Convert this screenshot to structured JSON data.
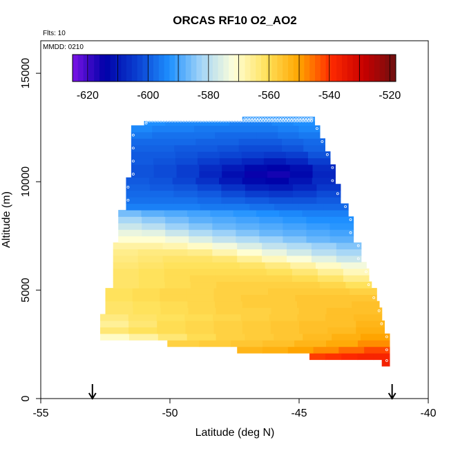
{
  "chart_data": {
    "type": "heatmap",
    "title": "ORCAS RF10 O2_AO2",
    "annotations": {
      "flights": "Flts: 10",
      "date": "MMDD: 0210"
    },
    "xlabel": "Latitude (deg N)",
    "ylabel": "Altitude (m)",
    "xlim": [
      -55,
      -40
    ],
    "ylim": [
      0,
      16500
    ],
    "xticks": [
      -55,
      -50,
      -45,
      -40
    ],
    "xtick_labels": [
      "-55",
      "-50",
      "-45",
      "-40"
    ],
    "yticks": [
      0,
      5000,
      10000,
      15000
    ],
    "ytick_labels": [
      "0",
      "5000",
      "10000",
      "15000"
    ],
    "colorbar": {
      "range": [
        -625,
        -518
      ],
      "ticks": [
        -620,
        -600,
        -580,
        -560,
        -540,
        -520
      ],
      "tick_labels": [
        "-620",
        "-600",
        "-580",
        "-560",
        "-540",
        "-520"
      ],
      "colors": [
        "#7b14e6",
        "#0000a8",
        "#0a3fd0",
        "#1e90ff",
        "#a6d6f7",
        "#ffffd8",
        "#ffe15a",
        "#ffa500",
        "#ff2a00",
        "#c80000",
        "#6e1010"
      ]
    },
    "arrows_at_latitude": [
      -53,
      -41.4
    ],
    "altitude_rows": [
      {
        "y0": 1500,
        "y1": 2000,
        "x0": -41.8,
        "x1": -41.5,
        "values": [
          -537,
          -537
        ]
      },
      {
        "y0": 1800,
        "y1": 2100,
        "x0": -44.6,
        "x1": -41.5,
        "values": [
          -541,
          -540,
          -539,
          -538,
          -538
        ]
      },
      {
        "y0": 2100,
        "y1": 2400,
        "x0": -47.4,
        "x1": -41.5,
        "values": [
          -553,
          -552,
          -550,
          -548,
          -545,
          -542
        ]
      },
      {
        "y0": 2400,
        "y1": 2700,
        "x0": -50.1,
        "x1": -41.5,
        "values": [
          -558,
          -557,
          -556,
          -555,
          -553,
          -551,
          -548
        ]
      },
      {
        "y0": 2700,
        "y1": 3000,
        "x0": -52.7,
        "x1": -41.5,
        "values": [
          -570,
          -567,
          -563,
          -560,
          -558,
          -557,
          -556,
          -554,
          -552,
          -550
        ]
      },
      {
        "y0": 3000,
        "y1": 3300,
        "x0": -52.7,
        "x1": -41.7,
        "values": [
          -563,
          -561,
          -560,
          -559,
          -558,
          -557,
          -556,
          -555,
          -554,
          -552
        ]
      },
      {
        "y0": 3300,
        "y1": 3600,
        "x0": -52.7,
        "x1": -41.7,
        "values": [
          -566,
          -563,
          -560,
          -559,
          -558,
          -557,
          -556,
          -555,
          -555,
          -553
        ]
      },
      {
        "y0": 3600,
        "y1": 3900,
        "x0": -52.7,
        "x1": -41.8,
        "values": [
          -564,
          -562,
          -561,
          -560,
          -559,
          -558,
          -557,
          -556,
          -555,
          -554
        ]
      },
      {
        "y0": 3900,
        "y1": 4200,
        "x0": -52.5,
        "x1": -41.8,
        "values": [
          -562,
          -561,
          -560,
          -559,
          -558,
          -558,
          -557,
          -556,
          -555,
          -555
        ]
      },
      {
        "y0": 4200,
        "y1": 4500,
        "x0": -52.5,
        "x1": -41.9,
        "values": [
          -562,
          -561,
          -560,
          -559,
          -558,
          -557,
          -557,
          -556,
          -556,
          -555
        ]
      },
      {
        "y0": 4500,
        "y1": 4800,
        "x0": -52.5,
        "x1": -42.0,
        "values": [
          -561,
          -560,
          -559,
          -559,
          -558,
          -557,
          -557,
          -556,
          -556,
          -556
        ]
      },
      {
        "y0": 4800,
        "y1": 5100,
        "x0": -52.5,
        "x1": -42.0,
        "values": [
          -561,
          -560,
          -559,
          -559,
          -558,
          -558,
          -557,
          -557,
          -557,
          -558
        ]
      },
      {
        "y0": 5100,
        "y1": 5400,
        "x0": -52.2,
        "x1": -42.2,
        "values": [
          -562,
          -561,
          -560,
          -559,
          -558,
          -558,
          -558,
          -558,
          -559,
          -561
        ]
      },
      {
        "y0": 5400,
        "y1": 5700,
        "x0": -52.2,
        "x1": -42.3,
        "values": [
          -562,
          -561,
          -560,
          -559,
          -559,
          -559,
          -559,
          -560,
          -562,
          -565
        ]
      },
      {
        "y0": 5700,
        "y1": 6000,
        "x0": -52.2,
        "x1": -42.3,
        "values": [
          -562,
          -561,
          -560,
          -560,
          -560,
          -560,
          -561,
          -563,
          -566,
          -569
        ]
      },
      {
        "y0": 6000,
        "y1": 6300,
        "x0": -52.2,
        "x1": -42.4,
        "values": [
          -563,
          -562,
          -561,
          -561,
          -561,
          -562,
          -564,
          -567,
          -570,
          -573
        ]
      },
      {
        "y0": 6300,
        "y1": 6600,
        "x0": -52.2,
        "x1": -42.6,
        "values": [
          -564,
          -563,
          -562,
          -562,
          -563,
          -566,
          -569,
          -572,
          -575,
          -578
        ]
      },
      {
        "y0": 6600,
        "y1": 6900,
        "x0": -52.2,
        "x1": -42.6,
        "values": [
          -565,
          -564,
          -564,
          -565,
          -568,
          -571,
          -574,
          -577,
          -580,
          -582
        ]
      },
      {
        "y0": 6900,
        "y1": 7200,
        "x0": -52.2,
        "x1": -42.6,
        "values": [
          -567,
          -567,
          -568,
          -570,
          -573,
          -576,
          -579,
          -581,
          -583,
          -585
        ]
      },
      {
        "y0": 7200,
        "y1": 7500,
        "x0": -52.0,
        "x1": -42.9,
        "values": [
          -571,
          -571,
          -573,
          -576,
          -579,
          -581,
          -583,
          -585,
          -587,
          -588
        ]
      },
      {
        "y0": 7500,
        "y1": 7800,
        "x0": -52.0,
        "x1": -42.9,
        "values": [
          -574,
          -575,
          -578,
          -581,
          -583,
          -585,
          -587,
          -588,
          -589,
          -590
        ]
      },
      {
        "y0": 7800,
        "y1": 8100,
        "x0": -52.0,
        "x1": -42.9,
        "values": [
          -578,
          -580,
          -583,
          -585,
          -587,
          -588,
          -589,
          -590,
          -591,
          -592
        ]
      },
      {
        "y0": 8100,
        "y1": 8400,
        "x0": -52.0,
        "x1": -42.9,
        "values": [
          -582,
          -584,
          -586,
          -588,
          -589,
          -590,
          -591,
          -592,
          -593,
          -593
        ]
      },
      {
        "y0": 8400,
        "y1": 8700,
        "x0": -52.0,
        "x1": -43.1,
        "values": [
          -586,
          -588,
          -589,
          -590,
          -591,
          -592,
          -593,
          -594,
          -595,
          -595
        ]
      },
      {
        "y0": 8700,
        "y1": 9000,
        "x0": -51.7,
        "x1": -43.1,
        "values": [
          -595,
          -595,
          -595,
          -596,
          -596,
          -597,
          -598,
          -598,
          -598
        ]
      },
      {
        "y0": 9000,
        "y1": 9300,
        "x0": -51.7,
        "x1": -43.4,
        "values": [
          -597,
          -597,
          -597,
          -598,
          -599,
          -600,
          -601,
          -601,
          -600
        ]
      },
      {
        "y0": 9300,
        "y1": 9600,
        "x0": -51.7,
        "x1": -43.4,
        "values": [
          -598,
          -598,
          -599,
          -600,
          -602,
          -604,
          -605,
          -604,
          -602
        ]
      },
      {
        "y0": 9600,
        "y1": 9900,
        "x0": -51.7,
        "x1": -43.4,
        "values": [
          -599,
          -600,
          -601,
          -603,
          -606,
          -609,
          -610,
          -608,
          -605
        ]
      },
      {
        "y0": 9900,
        "y1": 10200,
        "x0": -51.7,
        "x1": -43.6,
        "values": [
          -600,
          -601,
          -603,
          -606,
          -610,
          -613,
          -614,
          -611,
          -607
        ]
      },
      {
        "y0": 10200,
        "y1": 10500,
        "x0": -51.5,
        "x1": -43.6,
        "values": [
          -601,
          -602,
          -604,
          -608,
          -612,
          -615,
          -616,
          -613,
          -608
        ]
      },
      {
        "y0": 10500,
        "y1": 10800,
        "x0": -51.5,
        "x1": -43.6,
        "values": [
          -601,
          -602,
          -604,
          -607,
          -610,
          -613,
          -614,
          -612,
          -607
        ]
      },
      {
        "y0": 10800,
        "y1": 11100,
        "x0": -51.5,
        "x1": -43.8,
        "values": [
          -600,
          -601,
          -602,
          -604,
          -606,
          -608,
          -610,
          -608,
          -604
        ]
      },
      {
        "y0": 11100,
        "y1": 11400,
        "x0": -51.5,
        "x1": -43.8,
        "values": [
          -600,
          -600,
          -601,
          -602,
          -603,
          -604,
          -605,
          -604,
          -601
        ]
      },
      {
        "y0": 11400,
        "y1": 11700,
        "x0": -51.5,
        "x1": -44.0,
        "values": [
          -599,
          -599,
          -600,
          -600,
          -601,
          -602,
          -602,
          -601,
          -599
        ]
      },
      {
        "y0": 11700,
        "y1": 12000,
        "x0": -51.5,
        "x1": -44.0,
        "values": [
          -598,
          -598,
          -598,
          -599,
          -599,
          -600,
          -600,
          -599,
          -598
        ]
      },
      {
        "y0": 12000,
        "y1": 12300,
        "x0": -51.5,
        "x1": -44.2,
        "values": [
          -596,
          -597,
          -597,
          -597,
          -598,
          -598,
          -598,
          -597,
          -596
        ]
      },
      {
        "y0": 12300,
        "y1": 12600,
        "x0": -51.5,
        "x1": -44.2,
        "values": [
          -594,
          -595,
          -595,
          -596,
          -596,
          -596,
          -596,
          -595,
          -594
        ]
      },
      {
        "y0": 12600,
        "y1": 12800,
        "x0": -51.0,
        "x1": -44.4,
        "values": [
          -593,
          -594,
          -594,
          -594,
          -595,
          -595,
          -594,
          -593
        ]
      },
      {
        "y0": 12800,
        "y1": 13000,
        "x0": -47.2,
        "x1": -44.4,
        "values": [
          -591,
          -592,
          -592,
          -591
        ]
      }
    ]
  }
}
